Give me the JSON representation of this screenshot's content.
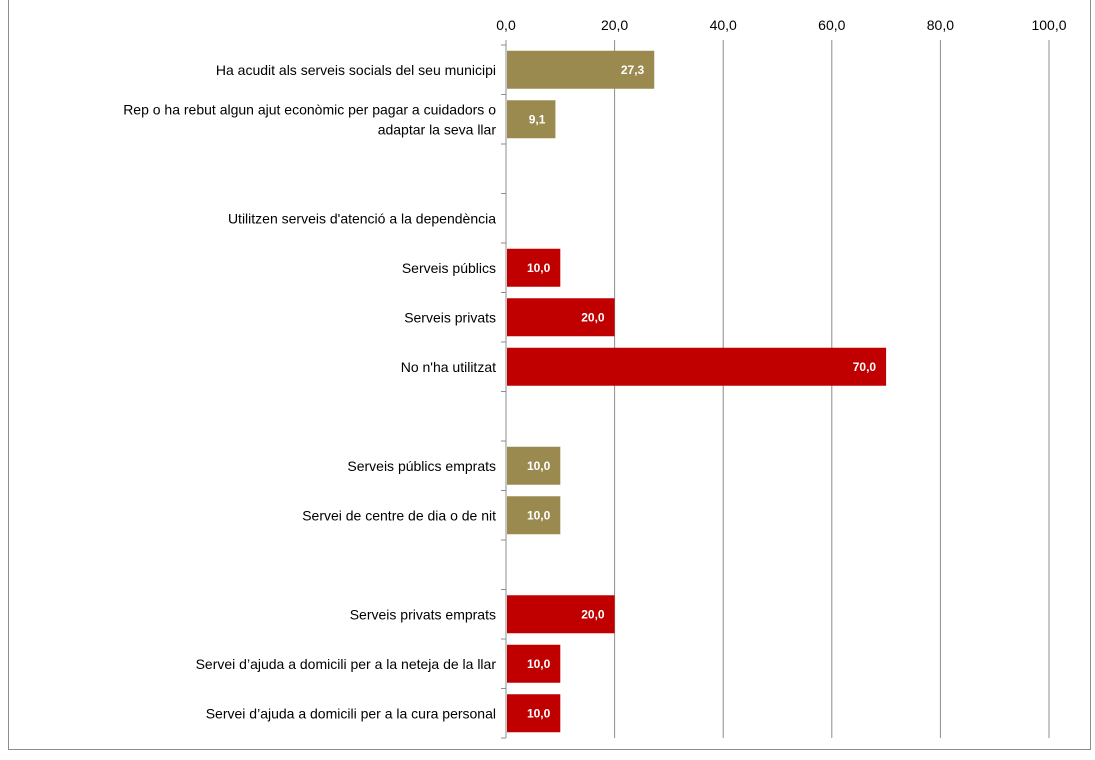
{
  "chart_data": {
    "type": "bar",
    "orientation": "horizontal",
    "title": "",
    "xlabel": "",
    "ylabel": "",
    "xlim": [
      0,
      100
    ],
    "x_ticks": [
      "0,0",
      "20,0",
      "40,0",
      "60,0",
      "80,0",
      "100,0"
    ],
    "x_axis_position": "top",
    "grid": true,
    "legend": "none",
    "colors": {
      "olive": "#9a8a50",
      "red": "#c00000"
    },
    "categories": [
      {
        "label": [
          "Ha acudit als serveis socials del seu municipi"
        ],
        "value": 27.3,
        "value_label": "27,3",
        "color": "olive"
      },
      {
        "label": [
          "Rep o ha rebut algun ajut econòmic per pagar a cuidadors o",
          "adaptar la seva llar"
        ],
        "value": 9.1,
        "value_label": "9,1",
        "color": "olive"
      },
      {
        "label": [
          ""
        ],
        "value": null,
        "value_label": "",
        "color": "olive"
      },
      {
        "label": [
          "Utilitzen serveis d'atenció a la dependència"
        ],
        "value": null,
        "value_label": "",
        "color": "red"
      },
      {
        "label": [
          "Serveis públics"
        ],
        "value": 10.0,
        "value_label": "10,0",
        "color": "red"
      },
      {
        "label": [
          "Serveis privats"
        ],
        "value": 20.0,
        "value_label": "20,0",
        "color": "red"
      },
      {
        "label": [
          "No n'ha utilitzat"
        ],
        "value": 70.0,
        "value_label": "70,0",
        "color": "red"
      },
      {
        "label": [
          ""
        ],
        "value": null,
        "value_label": "",
        "color": "olive"
      },
      {
        "label": [
          "Serveis públics emprats"
        ],
        "value": 10.0,
        "value_label": "10,0",
        "color": "olive"
      },
      {
        "label": [
          "Servei de centre de dia o de nit"
        ],
        "value": 10.0,
        "value_label": "10,0",
        "color": "olive"
      },
      {
        "label": [
          ""
        ],
        "value": null,
        "value_label": "",
        "color": "red"
      },
      {
        "label": [
          "Serveis privats emprats"
        ],
        "value": 20.0,
        "value_label": "20,0",
        "color": "red"
      },
      {
        "label": [
          "Servei d’ajuda a domicili per a la neteja de la llar"
        ],
        "value": 10.0,
        "value_label": "10,0",
        "color": "red"
      },
      {
        "label": [
          "Servei d’ajuda a domicili per a la cura personal"
        ],
        "value": 10.0,
        "value_label": "10,0",
        "color": "red"
      }
    ]
  }
}
